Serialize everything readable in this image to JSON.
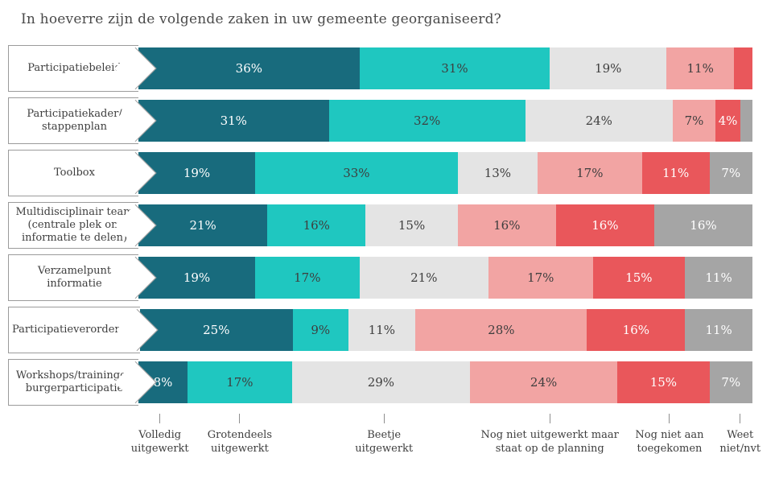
{
  "chart_data": {
    "type": "bar",
    "orientation": "horizontal",
    "stacked": true,
    "unit": "%",
    "xlim": [
      0,
      100
    ],
    "grid": false,
    "legend_position": "bottom",
    "min_label_value": 4,
    "title": "In hoeverre zijn de volgende zaken in uw gemeente georganiseerd?",
    "categories": [
      "Participatiebeleid",
      "Participatiekader/ stappenplan",
      "Toolbox",
      "Multidisciplinair team (centrale plek om informatie te delen)",
      "Verzamelpunt informatie",
      "Participatieverordening",
      "Workshops/trainingen burgerparticipatie"
    ],
    "series": [
      {
        "name": "Volledig uitgewerkt",
        "color": "#186b7d",
        "text_color": "#ffffff",
        "values": [
          36,
          31,
          19,
          21,
          19,
          25,
          8
        ]
      },
      {
        "name": "Grotendeels uitgewerkt",
        "color": "#1fc7c0",
        "text_color": "#3e3e3e",
        "values": [
          31,
          32,
          33,
          16,
          17,
          9,
          17
        ]
      },
      {
        "name": "Beetje uitgewerkt",
        "color": "#e4e4e4",
        "text_color": "#3e3e3e",
        "values": [
          19,
          24,
          13,
          15,
          21,
          11,
          29
        ]
      },
      {
        "name": "Nog niet uitgewerkt maar staat op de planning",
        "color": "#f2a4a3",
        "text_color": "#3e3e3e",
        "values": [
          11,
          7,
          17,
          16,
          17,
          28,
          24
        ]
      },
      {
        "name": "Nog niet aan toegekomen",
        "color": "#e9575b",
        "text_color": "#ffffff",
        "values": [
          3,
          4,
          11,
          16,
          15,
          16,
          15
        ]
      },
      {
        "name": "Weet niet/nvt",
        "color": "#a5a5a5",
        "text_color": "#ffffff",
        "values": [
          0,
          2,
          7,
          16,
          11,
          11,
          7
        ]
      }
    ]
  }
}
